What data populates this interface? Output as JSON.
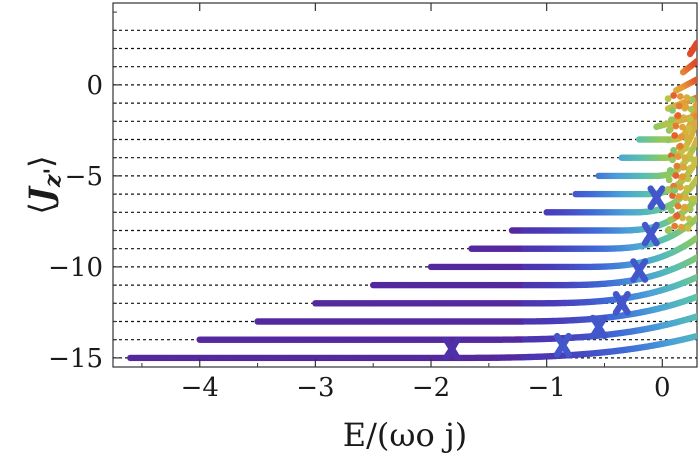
{
  "chart_data": {
    "type": "scatter",
    "title": "",
    "xlabel": "E/(ωo j)",
    "ylabel": "⟨J_z'⟩",
    "ylabel_parts": {
      "open": "⟨",
      "symbol": "J",
      "sub": "z'",
      "close": "⟩"
    },
    "xlim": [
      -4.75,
      0.3
    ],
    "ylim": [
      -15.5,
      4.5
    ],
    "x_ticks": [
      -4,
      -3,
      -2,
      -1,
      0
    ],
    "x_tick_labels": [
      "−4",
      "−3",
      "−2",
      "−1",
      "0"
    ],
    "y_ticks": [
      0,
      -5,
      -10,
      -15
    ],
    "y_tick_labels": [
      "0",
      "−5",
      "−10",
      "−15"
    ],
    "grid": false,
    "dashed_reference_levels": [
      -15,
      -14,
      -13,
      -12,
      -11,
      -10,
      -9,
      -8,
      -7,
      -6,
      -5,
      -4,
      -3,
      -2,
      -1,
      0,
      1,
      2,
      3
    ],
    "color_scale": [
      "#5a1e8c",
      "#4a3ab8",
      "#3f6ad8",
      "#4aa0d8",
      "#58c0b0",
      "#8cc860",
      "#c8c040",
      "#e89838",
      "#e04828"
    ],
    "series": [
      {
        "m": -15,
        "x_start": -4.6,
        "x_end": 0.3
      },
      {
        "m": -14,
        "x_start": -4.0,
        "x_end": 0.3
      },
      {
        "m": -13,
        "x_start": -3.5,
        "x_end": 0.3
      },
      {
        "m": -12,
        "x_start": -3.0,
        "x_end": 0.3
      },
      {
        "m": -11,
        "x_start": -2.5,
        "x_end": 0.3
      },
      {
        "m": -10,
        "x_start": -2.0,
        "x_end": 0.3
      },
      {
        "m": -9,
        "x_start": -1.65,
        "x_end": 0.3
      },
      {
        "m": -8,
        "x_start": -1.3,
        "x_end": 0.3
      },
      {
        "m": -7,
        "x_start": -1.0,
        "x_end": 0.3
      },
      {
        "m": -6,
        "x_start": -0.75,
        "x_end": 0.3
      },
      {
        "m": -5,
        "x_start": -0.55,
        "x_end": 0.3
      },
      {
        "m": -4,
        "x_start": -0.35,
        "x_end": 0.3
      },
      {
        "m": -3,
        "x_start": -0.2,
        "x_end": 0.3
      },
      {
        "m": -2,
        "x_start": -0.05,
        "x_end": 0.3
      },
      {
        "m": -1,
        "x_start": 0.05,
        "x_end": 0.3
      },
      {
        "m": 0,
        "x_start": 0.12,
        "x_end": 0.3
      },
      {
        "m": 1,
        "x_start": 0.18,
        "x_end": 0.3
      },
      {
        "m": 2,
        "x_start": 0.24,
        "x_end": 0.3
      }
    ]
  }
}
